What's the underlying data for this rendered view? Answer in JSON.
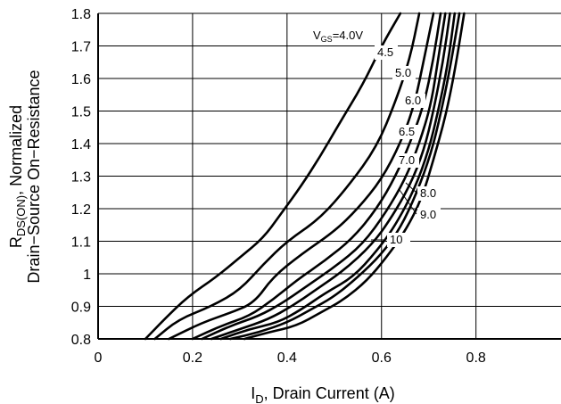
{
  "chart_data": {
    "type": "line",
    "xlabel": {
      "main": "I",
      "sub": "D",
      "rest": ", Drain Current (A)"
    },
    "ylabel": {
      "line1_main": "R",
      "line1_sub": "DS(ON)",
      "line1_rest": ", Normalized",
      "line2": "Drain−Source On−Resistance"
    },
    "xlim": [
      0,
      0.98
    ],
    "ylim": [
      0.8,
      1.8
    ],
    "x_ticks": [
      0,
      0.2,
      0.4,
      0.6,
      0.8
    ],
    "x_tick_labels": [
      "0",
      "0.2",
      "0.4",
      "0.6",
      "0.8"
    ],
    "y_ticks": [
      0.8,
      0.9,
      1.0,
      1.1,
      1.2,
      1.3,
      1.4,
      1.5,
      1.6,
      1.7,
      1.8
    ],
    "y_tick_labels": [
      "0.8",
      "0.9",
      "1",
      "1.1",
      "1.2",
      "1.3",
      "1.4",
      "1.5",
      "1.6",
      "1.7",
      "1.8"
    ],
    "vgs_label": {
      "main": "V",
      "sub": "GS",
      "rest": "=4.0V"
    },
    "grid": true,
    "series": [
      {
        "name": "4.0V",
        "x": [
          0.1,
          0.14,
          0.19,
          0.25,
          0.3,
          0.35,
          0.39,
          0.43,
          0.47,
          0.51,
          0.56,
          0.6,
          0.64
        ],
        "y": [
          0.8,
          0.86,
          0.93,
          0.99,
          1.05,
          1.11,
          1.19,
          1.27,
          1.36,
          1.46,
          1.58,
          1.7,
          1.8
        ]
      },
      {
        "name": "4.5",
        "x": [
          0.12,
          0.17,
          0.24,
          0.3,
          0.35,
          0.4,
          0.47,
          0.53,
          0.59,
          0.63,
          0.66,
          0.68
        ],
        "y": [
          0.8,
          0.86,
          0.9,
          0.95,
          1.03,
          1.1,
          1.17,
          1.27,
          1.39,
          1.53,
          1.66,
          1.8
        ]
      },
      {
        "name": "5.0",
        "x": [
          0.15,
          0.22,
          0.28,
          0.33,
          0.37,
          0.43,
          0.5,
          0.55,
          0.6,
          0.64,
          0.67,
          0.69,
          0.71
        ],
        "y": [
          0.8,
          0.85,
          0.88,
          0.91,
          0.99,
          1.06,
          1.13,
          1.2,
          1.29,
          1.4,
          1.52,
          1.66,
          1.8
        ]
      },
      {
        "name": "6.0",
        "x": [
          0.2,
          0.26,
          0.32,
          0.37,
          0.42,
          0.48,
          0.54,
          0.59,
          0.63,
          0.66,
          0.69,
          0.71,
          0.725
        ],
        "y": [
          0.8,
          0.84,
          0.87,
          0.92,
          0.98,
          1.04,
          1.11,
          1.2,
          1.3,
          1.4,
          1.52,
          1.66,
          1.8
        ]
      },
      {
        "name": "6.5",
        "x": [
          0.22,
          0.28,
          0.34,
          0.39,
          0.44,
          0.5,
          0.56,
          0.61,
          0.65,
          0.68,
          0.705,
          0.72,
          0.735
        ],
        "y": [
          0.8,
          0.84,
          0.87,
          0.91,
          0.96,
          1.02,
          1.09,
          1.19,
          1.29,
          1.4,
          1.52,
          1.66,
          1.8
        ]
      },
      {
        "name": "7.0",
        "x": [
          0.24,
          0.3,
          0.36,
          0.41,
          0.46,
          0.52,
          0.58,
          0.62,
          0.66,
          0.69,
          0.71,
          0.73,
          0.745
        ],
        "y": [
          0.8,
          0.83,
          0.86,
          0.9,
          0.95,
          1.01,
          1.09,
          1.17,
          1.27,
          1.38,
          1.5,
          1.65,
          1.8
        ]
      },
      {
        "name": "8.0",
        "x": [
          0.26,
          0.32,
          0.38,
          0.43,
          0.48,
          0.54,
          0.59,
          0.63,
          0.67,
          0.7,
          0.72,
          0.74,
          0.755
        ],
        "y": [
          0.8,
          0.83,
          0.85,
          0.89,
          0.94,
          0.99,
          1.07,
          1.15,
          1.26,
          1.38,
          1.5,
          1.64,
          1.8
        ]
      },
      {
        "name": "9.0",
        "x": [
          0.28,
          0.34,
          0.4,
          0.45,
          0.5,
          0.55,
          0.6,
          0.64,
          0.675,
          0.705,
          0.725,
          0.745,
          0.765
        ],
        "y": [
          0.8,
          0.82,
          0.85,
          0.89,
          0.93,
          0.99,
          1.06,
          1.14,
          1.25,
          1.37,
          1.49,
          1.63,
          1.8
        ]
      },
      {
        "name": "10",
        "x": [
          0.31,
          0.36,
          0.42,
          0.47,
          0.52,
          0.57,
          0.61,
          0.65,
          0.685,
          0.71,
          0.735,
          0.755,
          0.775
        ],
        "y": [
          0.8,
          0.82,
          0.84,
          0.88,
          0.92,
          0.98,
          1.05,
          1.13,
          1.23,
          1.35,
          1.48,
          1.62,
          1.8
        ]
      }
    ]
  }
}
